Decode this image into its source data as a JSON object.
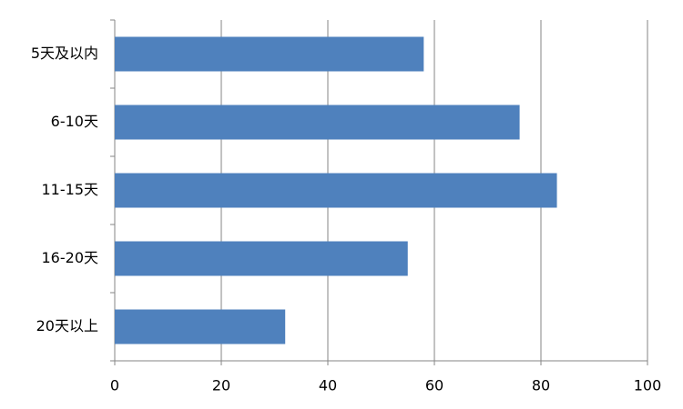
{
  "chart_data": {
    "type": "bar",
    "orientation": "horizontal",
    "categories": [
      "5天及以内",
      "6-10天",
      "11-15天",
      "16-20天",
      "20天以上"
    ],
    "values": [
      58,
      76,
      83,
      55,
      32
    ],
    "color": "#4f81bd",
    "xlim": [
      0,
      100
    ],
    "xticks": [
      0,
      20,
      40,
      60,
      80,
      100
    ],
    "grid": true
  }
}
